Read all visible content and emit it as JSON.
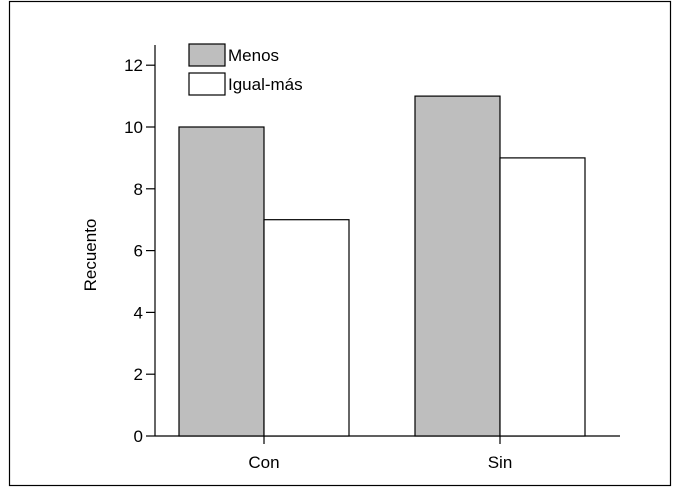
{
  "chart_data": {
    "type": "bar",
    "title": "",
    "xlabel": "",
    "ylabel": "Recuento",
    "categories": [
      "Con",
      "Sin"
    ],
    "series": [
      {
        "name": "Menos",
        "values": [
          10,
          11
        ],
        "color": "#bebebe"
      },
      {
        "name": "Igual-más",
        "values": [
          7,
          9
        ],
        "color": "#ffffff"
      }
    ],
    "ylim": [
      0,
      12.5
    ],
    "yticks": [
      0,
      2,
      4,
      6,
      8,
      10,
      12
    ],
    "grid": false,
    "legend": "top-left"
  }
}
